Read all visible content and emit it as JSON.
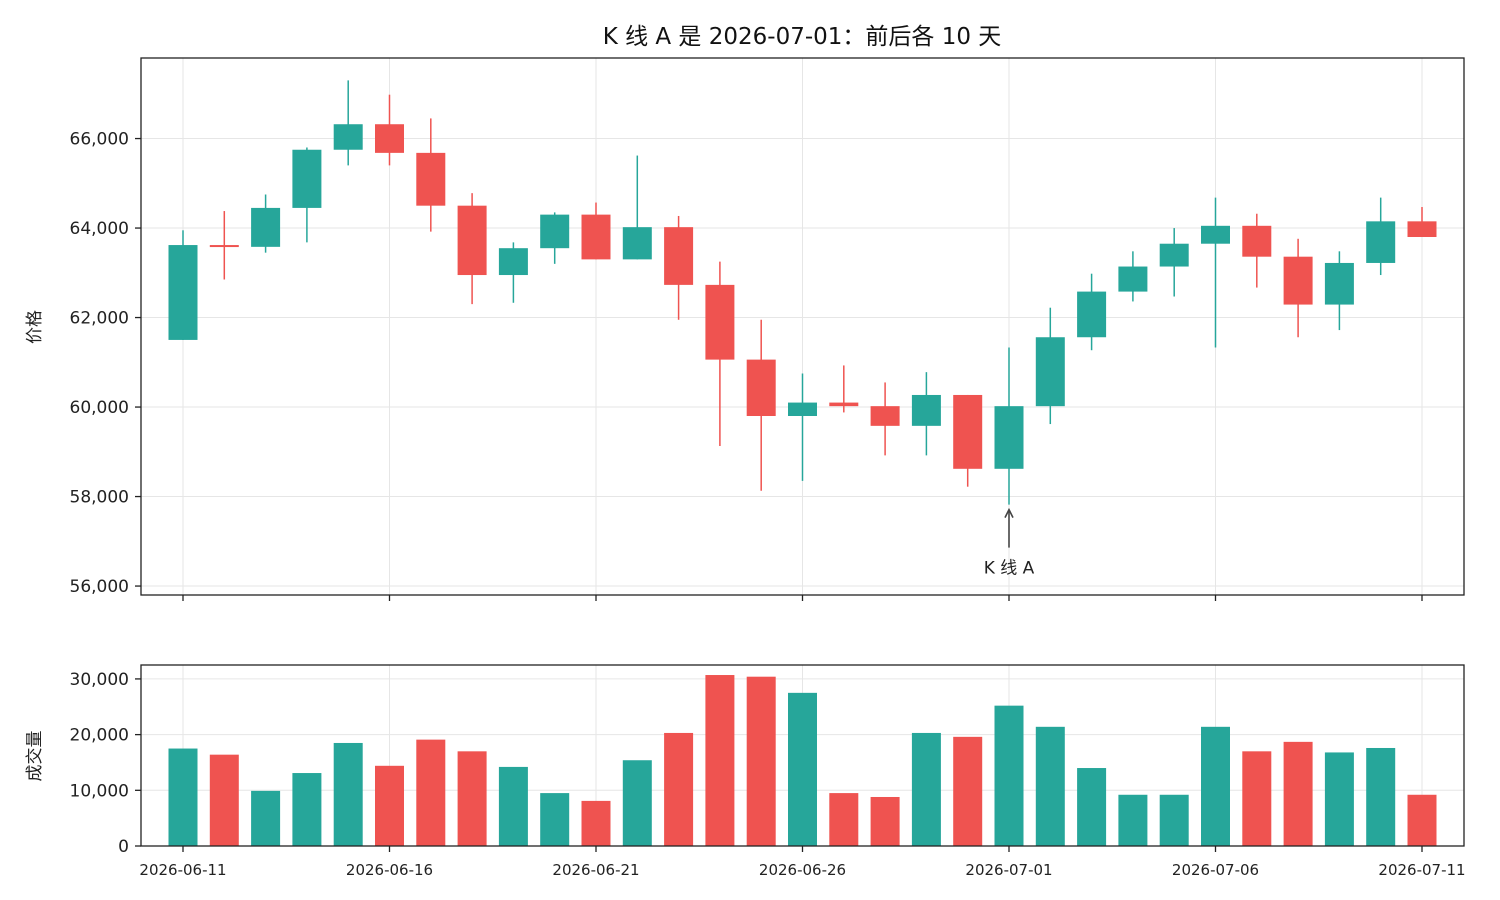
{
  "chart_data": {
    "type": "candlestick",
    "title": "K 线 A 是 2026-07-01：前后各 10 天",
    "ylabel_price": "价格",
    "ylabel_volume": "成交量",
    "price_ylim": [
      55800,
      67800
    ],
    "price_ticks": [
      "56,000",
      "58,000",
      "60,000",
      "62,000",
      "64,000",
      "66,000"
    ],
    "price_tick_values": [
      56000,
      58000,
      60000,
      62000,
      64000,
      66000
    ],
    "volume_ylim": [
      0,
      32500
    ],
    "volume_ticks": [
      "0",
      "10,000",
      "20,000",
      "30,000"
    ],
    "volume_tick_values": [
      0,
      10000,
      20000,
      30000
    ],
    "x_tick_labels": [
      "2026-06-11",
      "2026-06-16",
      "2026-06-21",
      "2026-06-26",
      "2026-07-01",
      "2026-07-06",
      "2026-07-11"
    ],
    "x_tick_indices": [
      0,
      5,
      10,
      15,
      20,
      25,
      30
    ],
    "annotation": {
      "text": "K 线 A",
      "date": "2026-07-01",
      "index": 20
    },
    "colors": {
      "up": "#26a69a",
      "down": "#ef5350",
      "grid": "#e6e6e6",
      "axis": "#222222"
    },
    "grid": true,
    "candles": [
      {
        "date": "2026-06-11",
        "open": 61500,
        "high": 63950,
        "low": 61500,
        "close": 63620,
        "volume": 17500
      },
      {
        "date": "2026-06-12",
        "open": 63620,
        "high": 64380,
        "low": 62850,
        "close": 63580,
        "volume": 16400
      },
      {
        "date": "2026-06-13",
        "open": 63580,
        "high": 64750,
        "low": 63450,
        "close": 64450,
        "volume": 9900
      },
      {
        "date": "2026-06-14",
        "open": 64450,
        "high": 65800,
        "low": 63680,
        "close": 65750,
        "volume": 13100
      },
      {
        "date": "2026-06-15",
        "open": 65750,
        "high": 67300,
        "low": 65400,
        "close": 66320,
        "volume": 18500
      },
      {
        "date": "2026-06-16",
        "open": 66320,
        "high": 66980,
        "low": 65400,
        "close": 65680,
        "volume": 14400
      },
      {
        "date": "2026-06-17",
        "open": 65680,
        "high": 66450,
        "low": 63920,
        "close": 64500,
        "volume": 19100
      },
      {
        "date": "2026-06-18",
        "open": 64500,
        "high": 64780,
        "low": 62300,
        "close": 62950,
        "volume": 17000
      },
      {
        "date": "2026-06-19",
        "open": 62950,
        "high": 63680,
        "low": 62330,
        "close": 63550,
        "volume": 14200
      },
      {
        "date": "2026-06-20",
        "open": 63550,
        "high": 64350,
        "low": 63200,
        "close": 64300,
        "volume": 9500
      },
      {
        "date": "2026-06-21",
        "open": 64300,
        "high": 64570,
        "low": 63300,
        "close": 63300,
        "volume": 8100
      },
      {
        "date": "2026-06-22",
        "open": 63300,
        "high": 65620,
        "low": 63300,
        "close": 64020,
        "volume": 15400
      },
      {
        "date": "2026-06-23",
        "open": 64020,
        "high": 64270,
        "low": 61950,
        "close": 62730,
        "volume": 20300
      },
      {
        "date": "2026-06-24",
        "open": 62730,
        "high": 63250,
        "low": 59130,
        "close": 61060,
        "volume": 30700
      },
      {
        "date": "2026-06-25",
        "open": 61060,
        "high": 61950,
        "low": 58130,
        "close": 59800,
        "volume": 30400
      },
      {
        "date": "2026-06-26",
        "open": 59800,
        "high": 60750,
        "low": 58350,
        "close": 60100,
        "volume": 27500
      },
      {
        "date": "2026-06-27",
        "open": 60100,
        "high": 60930,
        "low": 59880,
        "close": 60020,
        "volume": 9500
      },
      {
        "date": "2026-06-28",
        "open": 60020,
        "high": 60550,
        "low": 58920,
        "close": 59580,
        "volume": 8800
      },
      {
        "date": "2026-06-29",
        "open": 59580,
        "high": 60780,
        "low": 58920,
        "close": 60270,
        "volume": 20300
      },
      {
        "date": "2026-06-30",
        "open": 60270,
        "high": 60270,
        "low": 58220,
        "close": 58620,
        "volume": 19600
      },
      {
        "date": "2026-07-01",
        "open": 58620,
        "high": 61330,
        "low": 57820,
        "close": 60020,
        "volume": 25200
      },
      {
        "date": "2026-07-02",
        "open": 60020,
        "high": 62220,
        "low": 59620,
        "close": 61560,
        "volume": 21400
      },
      {
        "date": "2026-07-03",
        "open": 61560,
        "high": 62980,
        "low": 61270,
        "close": 62580,
        "volume": 14000
      },
      {
        "date": "2026-07-04",
        "open": 62580,
        "high": 63480,
        "low": 62360,
        "close": 63140,
        "volume": 9200
      },
      {
        "date": "2026-07-05",
        "open": 63140,
        "high": 64000,
        "low": 62470,
        "close": 63650,
        "volume": 9200
      },
      {
        "date": "2026-07-06",
        "open": 63650,
        "high": 64680,
        "low": 61330,
        "close": 64050,
        "volume": 21400
      },
      {
        "date": "2026-07-07",
        "open": 64050,
        "high": 64320,
        "low": 62670,
        "close": 63360,
        "volume": 17000
      },
      {
        "date": "2026-07-08",
        "open": 63360,
        "high": 63760,
        "low": 61560,
        "close": 62290,
        "volume": 18700
      },
      {
        "date": "2026-07-09",
        "open": 62290,
        "high": 63480,
        "low": 61720,
        "close": 63220,
        "volume": 16800
      },
      {
        "date": "2026-07-10",
        "open": 63220,
        "high": 64680,
        "low": 62950,
        "close": 64150,
        "volume": 17600
      },
      {
        "date": "2026-07-11",
        "open": 64150,
        "high": 64470,
        "low": 63800,
        "close": 63800,
        "volume": 9200
      }
    ]
  }
}
